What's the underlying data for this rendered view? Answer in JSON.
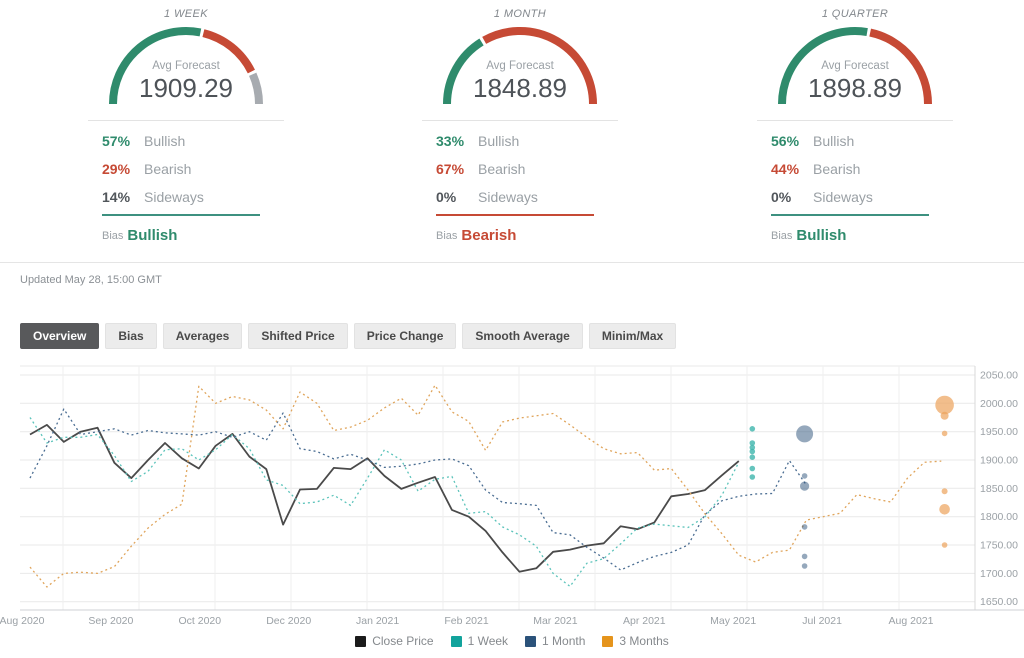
{
  "colors": {
    "bullish": "#2f8b6c",
    "bearish": "#c64a35",
    "sideways": "#a7abb0",
    "close_line": "#4a4a4a",
    "week_line": "#5bc3ba",
    "month_line": "#4a6d92",
    "quarter_line": "#e0a55c",
    "legend_close": "#1b1b1b",
    "legend_week": "#12a39c",
    "legend_month": "#2b527a",
    "legend_quarter": "#e5941c"
  },
  "gauges": [
    {
      "title": "1 WEEK",
      "avg_label": "Avg Forecast",
      "avg": "1909.29",
      "pcts": [
        57,
        29,
        14
      ],
      "rows": [
        {
          "value": "57%",
          "label": "Bullish"
        },
        {
          "value": "29%",
          "label": "Bearish"
        },
        {
          "value": "14%",
          "label": "Sideways"
        }
      ],
      "bias_label": "Bias",
      "bias": "Bullish"
    },
    {
      "title": "1 MONTH",
      "avg_label": "Avg Forecast",
      "avg": "1848.89",
      "pcts": [
        33,
        67,
        0
      ],
      "rows": [
        {
          "value": "33%",
          "label": "Bullish"
        },
        {
          "value": "67%",
          "label": "Bearish"
        },
        {
          "value": "0%",
          "label": "Sideways"
        }
      ],
      "bias_label": "Bias",
      "bias": "Bearish"
    },
    {
      "title": "1 QUARTER",
      "avg_label": "Avg Forecast",
      "avg": "1898.89",
      "pcts": [
        56,
        44,
        0
      ],
      "rows": [
        {
          "value": "56%",
          "label": "Bullish"
        },
        {
          "value": "44%",
          "label": "Bearish"
        },
        {
          "value": "0%",
          "label": "Sideways"
        }
      ],
      "bias_label": "Bias",
      "bias": "Bullish"
    }
  ],
  "updated": "Updated May 28, 15:00 GMT",
  "tabs": [
    {
      "label": "Overview",
      "active": true
    },
    {
      "label": "Bias",
      "active": false
    },
    {
      "label": "Averages",
      "active": false
    },
    {
      "label": "Shifted Price",
      "active": false
    },
    {
      "label": "Price Change",
      "active": false
    },
    {
      "label": "Smooth Average",
      "active": false
    },
    {
      "label": "Minim/Max",
      "active": false
    }
  ],
  "chart_data": {
    "type": "line",
    "grid": true,
    "legend_position": "bottom-center",
    "ylim": [
      1636,
      2066
    ],
    "yticks": [
      2050,
      2000,
      1950,
      1900,
      1850,
      1800,
      1750,
      1700,
      1650
    ],
    "xlabels": [
      "Aug 2020",
      "Sep 2020",
      "Oct 2020",
      "Dec 2020",
      "Jan 2021",
      "Feb 2021",
      "Mar 2021",
      "Apr 2021",
      "May 2021",
      "Jul 2021",
      "Aug 2021"
    ],
    "x_unit": "week_index",
    "series": [
      {
        "name": "Close Price",
        "color": "#4a4a4a",
        "legend_color": "#1b1b1b",
        "dashed": false,
        "width": 1.8,
        "start_week": 0,
        "values": [
          1945,
          1962,
          1932,
          1950,
          1957,
          1895,
          1868,
          1900,
          1930,
          1903,
          1885,
          1925,
          1946,
          1906,
          1884,
          1786,
          1848,
          1849,
          1886,
          1884,
          1903,
          1872,
          1849,
          1860,
          1870,
          1812,
          1800,
          1775,
          1737,
          1703,
          1709,
          1738,
          1742,
          1749,
          1753,
          1783,
          1778,
          1790,
          1836,
          1840,
          1847,
          1873,
          1898
        ]
      },
      {
        "name": "1 Week",
        "color": "#5bc3ba",
        "legend_color": "#12a39c",
        "dashed": true,
        "width": 1.3,
        "start_week": 0,
        "values": [
          1975,
          1930,
          1940,
          1940,
          1945,
          1908,
          1862,
          1880,
          1918,
          1920,
          1900,
          1918,
          1945,
          1920,
          1865,
          1855,
          1823,
          1826,
          1838,
          1820,
          1868,
          1918,
          1900,
          1845,
          1866,
          1871,
          1806,
          1809,
          1782,
          1768,
          1748,
          1700,
          1677,
          1718,
          1726,
          1752,
          1780,
          1787,
          1784,
          1781,
          1800,
          1838,
          1896
        ]
      },
      {
        "name": "1 Month",
        "color": "#4a6d92",
        "legend_color": "#2b527a",
        "dashed": true,
        "width": 1.3,
        "start_week": 0,
        "values": [
          1868,
          1925,
          1990,
          1945,
          1950,
          1955,
          1944,
          1952,
          1948,
          1946,
          1944,
          1950,
          1940,
          1950,
          1935,
          1983,
          1920,
          1915,
          1902,
          1910,
          1900,
          1887,
          1889,
          1893,
          1900,
          1902,
          1890,
          1847,
          1825,
          1823,
          1820,
          1772,
          1768,
          1746,
          1727,
          1706,
          1719,
          1730,
          1737,
          1750,
          1804,
          1828,
          1836,
          1840,
          1841,
          1899,
          1856
        ]
      },
      {
        "name": "3 Months",
        "color": "#e0a55c",
        "legend_color": "#e5941c",
        "dashed": true,
        "width": 1.3,
        "start_week": 0,
        "values": [
          1711,
          1676,
          1700,
          1702,
          1700,
          1712,
          1748,
          1780,
          1804,
          1822,
          2030,
          2000,
          2012,
          2006,
          1988,
          1955,
          2020,
          2000,
          1952,
          1958,
          1970,
          1992,
          2009,
          1979,
          2032,
          1985,
          1968,
          1917,
          1967,
          1974,
          1978,
          1982,
          1962,
          1940,
          1920,
          1911,
          1913,
          1882,
          1885,
          1847,
          1805,
          1770,
          1732,
          1720,
          1737,
          1741,
          1794,
          1800,
          1806,
          1839,
          1832,
          1826,
          1868,
          1896,
          1898
        ]
      }
    ],
    "forecast_dots": [
      {
        "series": "1 Week",
        "week": 42.8,
        "color": "#3fb5ac",
        "opacity": 0.8,
        "points": [
          {
            "value": 1955,
            "r": 2.8
          },
          {
            "value": 1930,
            "r": 2.8
          },
          {
            "value": 1922,
            "r": 2.8
          },
          {
            "value": 1915,
            "r": 2.8
          },
          {
            "value": 1905,
            "r": 2.8
          },
          {
            "value": 1885,
            "r": 2.8
          },
          {
            "value": 1870,
            "r": 2.8
          }
        ]
      },
      {
        "series": "1 Month",
        "week": 45.9,
        "color": "#2b527a",
        "opacity": 0.5,
        "points": [
          {
            "value": 1946,
            "r": 8.5
          },
          {
            "value": 1872,
            "r": 2.8
          },
          {
            "value": 1854,
            "r": 4.6
          },
          {
            "value": 1782,
            "r": 2.8
          },
          {
            "value": 1730,
            "r": 2.8
          },
          {
            "value": 1713,
            "r": 2.8
          }
        ]
      },
      {
        "series": "3 Months",
        "week": 54.2,
        "color": "#eca35b",
        "opacity": 0.7,
        "points": [
          {
            "value": 1997,
            "r": 9.3
          },
          {
            "value": 1978,
            "r": 4.0
          },
          {
            "value": 1947,
            "r": 2.8
          },
          {
            "value": 1845,
            "r": 3.0
          },
          {
            "value": 1813,
            "r": 5.3
          },
          {
            "value": 1750,
            "r": 2.8
          }
        ]
      }
    ]
  }
}
